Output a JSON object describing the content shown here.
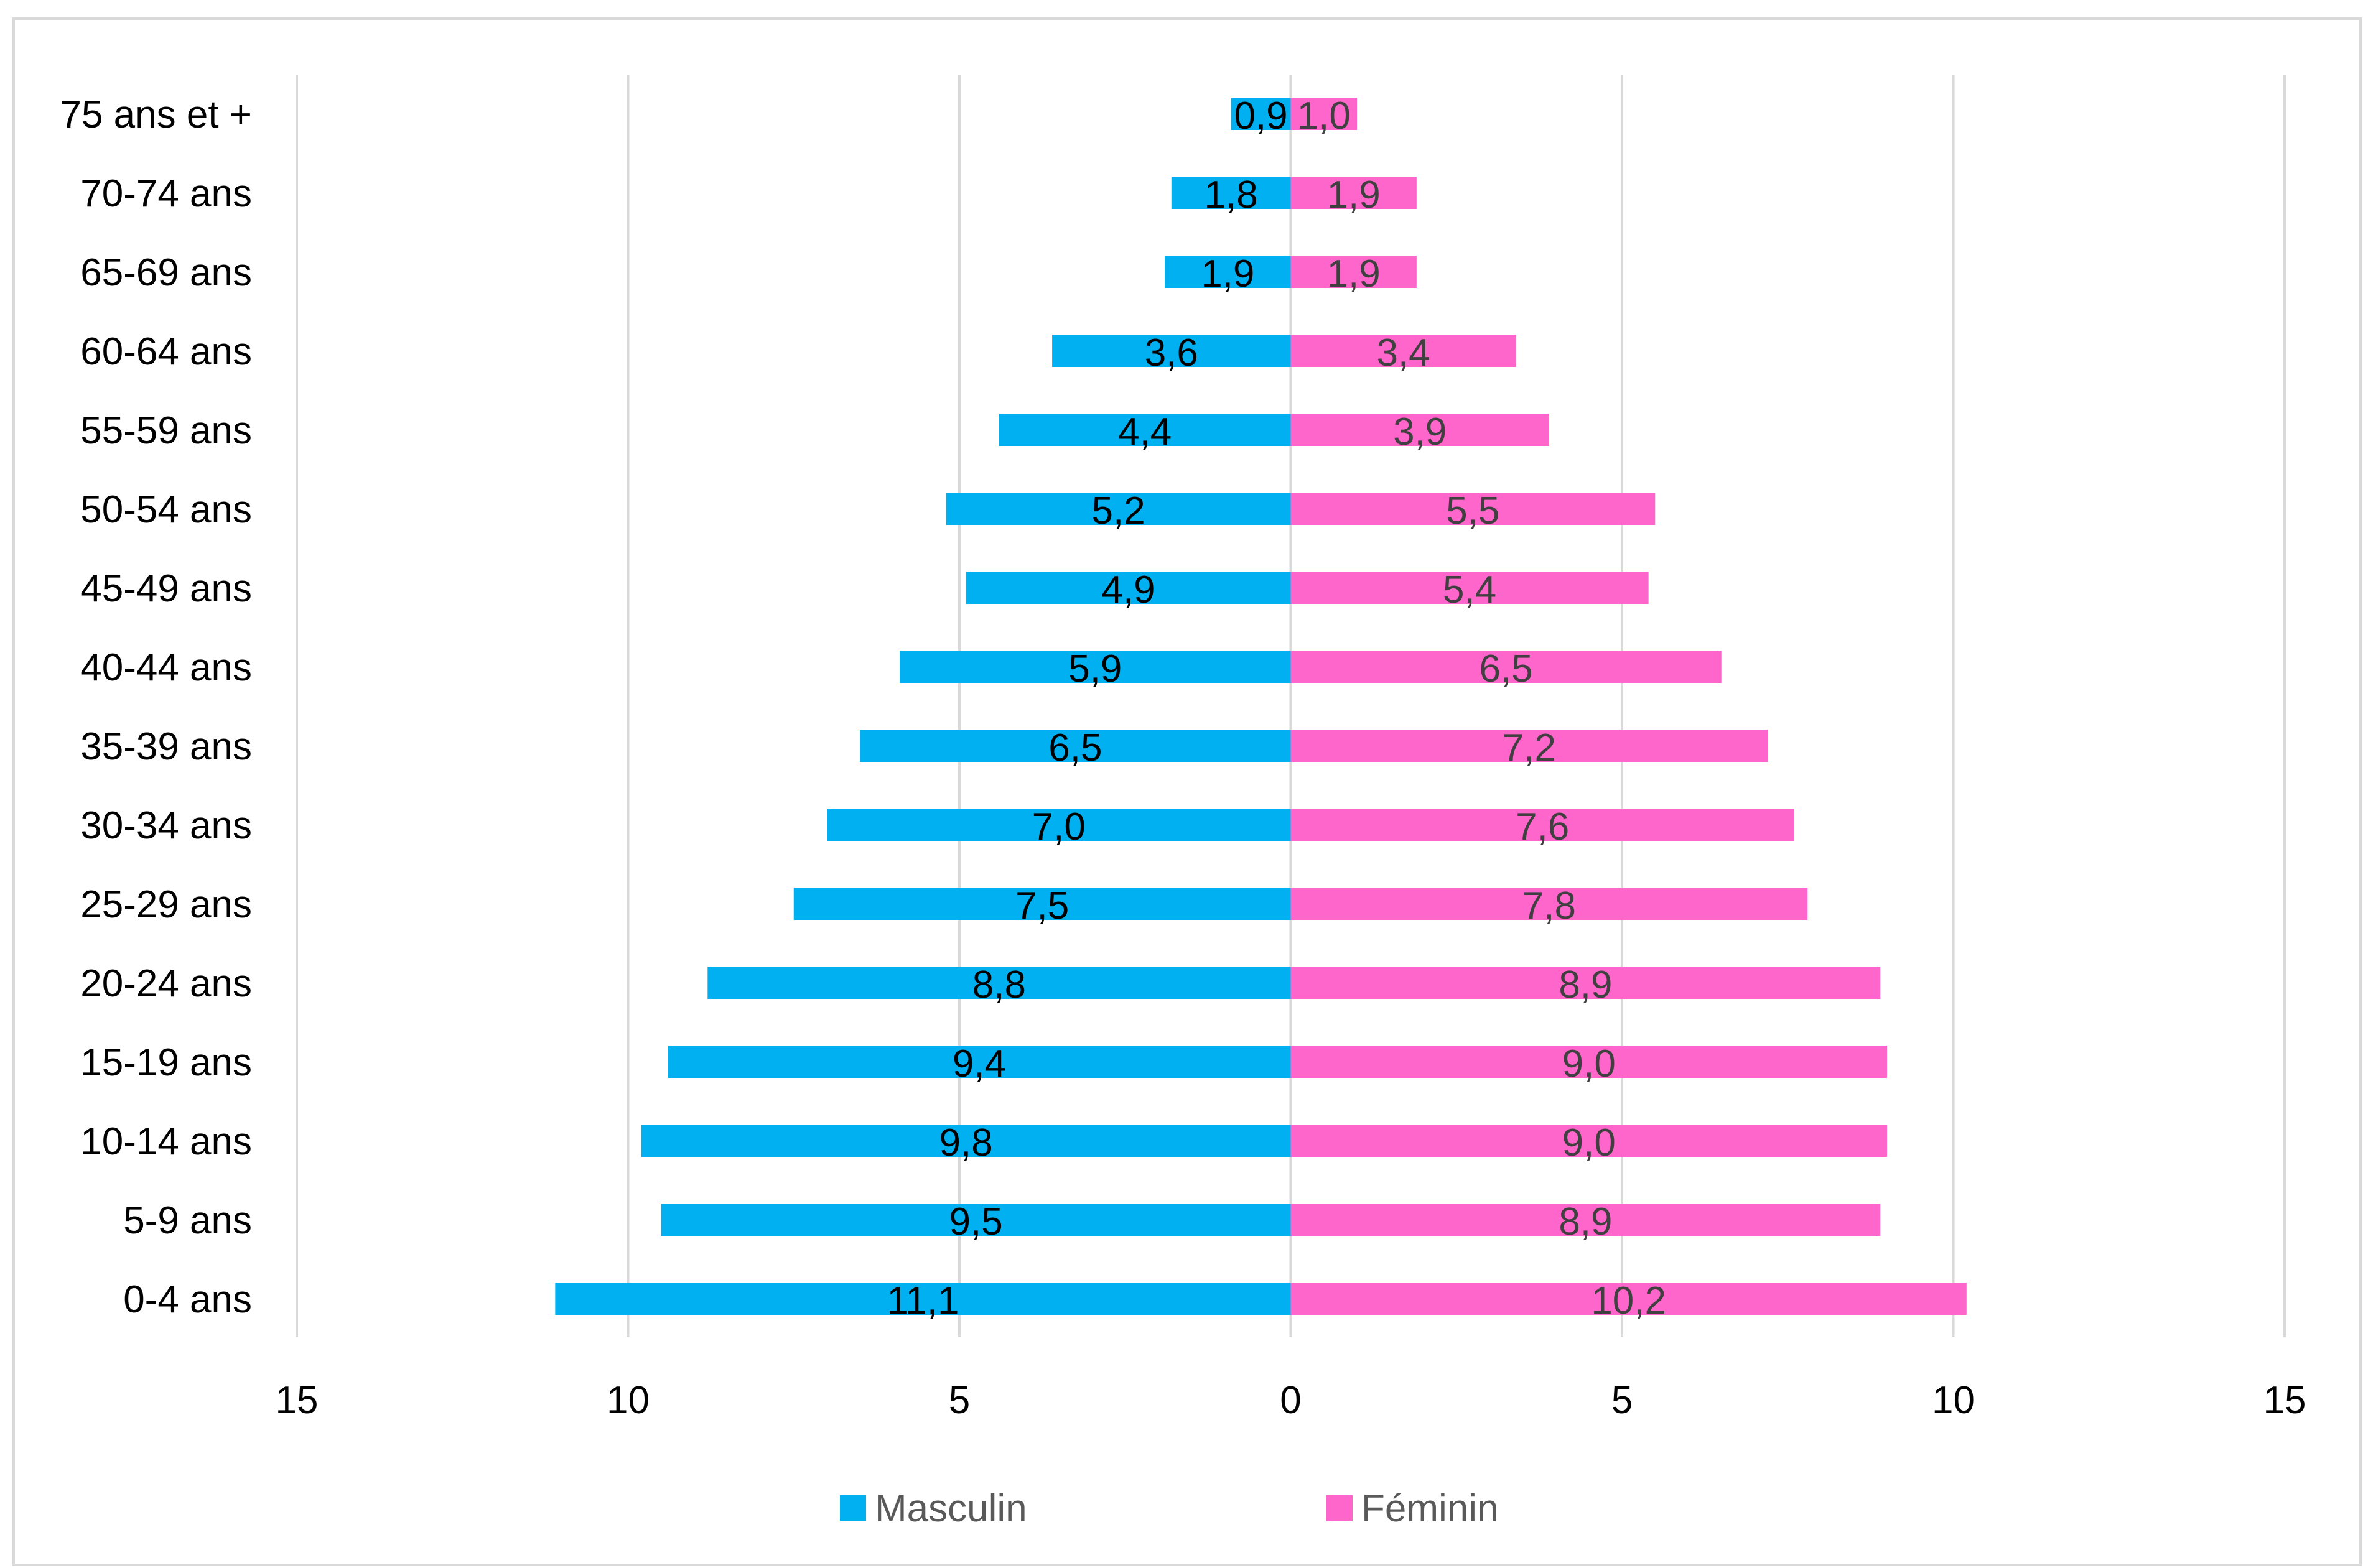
{
  "chart_data": {
    "type": "bar",
    "orientation": "horizontal",
    "subtype": "population-pyramid",
    "title": "",
    "xlabel": "",
    "ylabel": "",
    "xlim": [
      -15,
      15
    ],
    "x_ticks": [
      -15,
      -10,
      -5,
      0,
      5,
      10,
      15
    ],
    "x_tick_labels": [
      "15",
      "10",
      "5",
      "0",
      "5",
      "10",
      "15"
    ],
    "grid": "vertical",
    "legend_position": "bottom",
    "categories": [
      "75 ans et +",
      "70-74 ans",
      "65-69 ans",
      "60-64 ans",
      "55-59 ans",
      "50-54 ans",
      "45-49 ans",
      "40-44 ans",
      "35-39 ans",
      "30-34 ans",
      "25-29 ans",
      "20-24 ans",
      "15-19 ans",
      "10-14 ans",
      "5-9 ans",
      "0-4 ans"
    ],
    "series": [
      {
        "name": "Masculin",
        "color": "#00b0f0",
        "side": "left",
        "values": [
          0.9,
          1.8,
          1.9,
          3.6,
          4.4,
          5.2,
          4.9,
          5.9,
          6.5,
          7.0,
          7.5,
          8.8,
          9.4,
          9.8,
          9.5,
          11.1
        ],
        "labels": [
          "0,9",
          "1,8",
          "1,9",
          "3,6",
          "4,4",
          "5,2",
          "4,9",
          "5,9",
          "6,5",
          "7,0",
          "7,5",
          "8,8",
          "9,4",
          "9,8",
          "9,5",
          "11,1"
        ]
      },
      {
        "name": "Féminin",
        "color": "#ff66cc",
        "side": "right",
        "values": [
          1.0,
          1.9,
          1.9,
          3.4,
          3.9,
          5.5,
          5.4,
          6.5,
          7.2,
          7.6,
          7.8,
          8.9,
          9.0,
          9.0,
          8.9,
          10.2
        ],
        "labels": [
          "1,0",
          "1,9",
          "1,9",
          "3,4",
          "3,9",
          "5,5",
          "5,4",
          "6,5",
          "7,2",
          "7,6",
          "7,8",
          "8,9",
          "9,0",
          "9,0",
          "8,9",
          "10,2"
        ]
      }
    ]
  },
  "legend": {
    "masculin_label": "Masculin",
    "feminin_label": "Féminin"
  }
}
